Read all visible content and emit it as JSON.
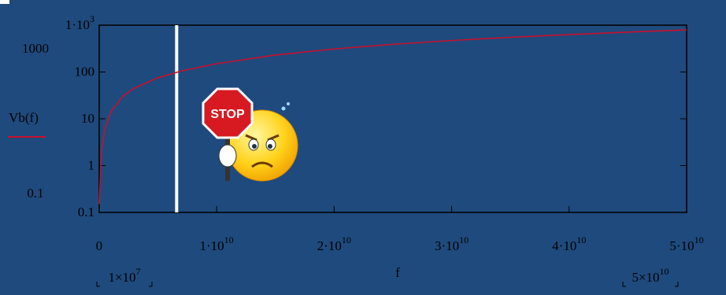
{
  "chart_data": {
    "type": "line",
    "x": [
      10000000,
      200000000,
      500000000,
      1000000000,
      2000000000,
      3000000000,
      5000000000,
      7000000000,
      10000000000,
      15000000000,
      20000000000,
      25000000000,
      30000000000,
      35000000000,
      40000000000,
      45000000000,
      50000000000
    ],
    "series": [
      {
        "name": "Vb(f)",
        "color": "#c8102e",
        "values": [
          0.15,
          2,
          6,
          14,
          30,
          45,
          75,
          105,
          150,
          230,
          310,
          390,
          470,
          550,
          630,
          710,
          790
        ]
      }
    ],
    "x_label": "f",
    "xlim": [
      10000000,
      50000000000
    ],
    "xlim_labels": [
      {
        "label": "1×10",
        "sup": "7"
      },
      {
        "label": "5×10",
        "sup": "10"
      }
    ],
    "xticks": [
      0,
      {
        "value": 10000000000,
        "label": "1·10",
        "sup": "10"
      },
      {
        "value": 20000000000,
        "label": "2·10",
        "sup": "10"
      },
      {
        "value": 30000000000,
        "label": "3·10",
        "sup": "10"
      },
      {
        "value": 40000000000,
        "label": "4·10",
        "sup": "10"
      },
      {
        "value": 50000000000,
        "label": "5·10",
        "sup": "10"
      }
    ],
    "ylim": [
      0.1,
      1000
    ],
    "ylim_labels": [
      "0.1",
      "1000"
    ],
    "yticks": [
      0.1,
      1,
      10,
      100,
      {
        "value": 1000,
        "label": "1·10",
        "sup": "3"
      }
    ],
    "y_log": true,
    "marker_x": 6600000000,
    "marker_color": "#ffffff",
    "sticker_text": "STOP"
  }
}
